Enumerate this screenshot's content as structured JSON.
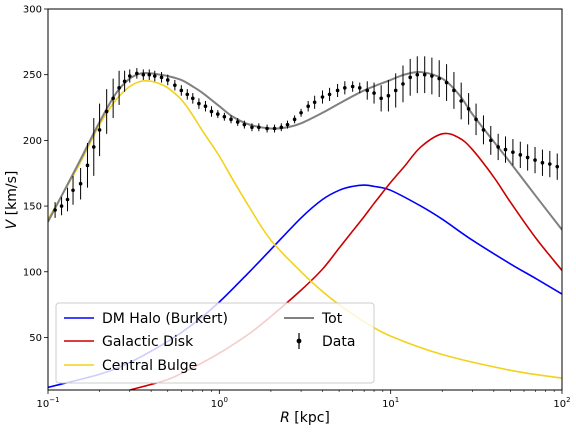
{
  "chart_data": {
    "type": "line",
    "xlabel": "R [kpc]",
    "ylabel": "V [km/s]",
    "xscale": "log",
    "xlim": [
      0.1,
      100
    ],
    "ylim": [
      10,
      300
    ],
    "xticks": [
      {
        "value": 0.1,
        "base": "10",
        "exp": "−1"
      },
      {
        "value": 1,
        "base": "10",
        "exp": "0"
      },
      {
        "value": 10,
        "base": "10",
        "exp": "1"
      },
      {
        "value": 100,
        "base": "10",
        "exp": "2"
      }
    ],
    "yticks": [
      50,
      100,
      150,
      200,
      250,
      300
    ],
    "legend_position": "lower-left",
    "series": [
      {
        "name": "DM Halo (Burkert)",
        "color": "#0000ff",
        "x": [
          0.1,
          0.2,
          0.3,
          0.5,
          0.7,
          1,
          1.5,
          2,
          3,
          4,
          5,
          6,
          7,
          8,
          10,
          15,
          20,
          30,
          50,
          70,
          100
        ],
        "y": [
          12,
          22,
          31,
          47,
          60,
          77,
          100,
          117,
          141,
          155,
          162,
          165,
          166,
          165,
          162,
          150,
          140,
          124,
          106,
          95,
          83
        ]
      },
      {
        "name": "Galactic Disk",
        "color": "#cc0000",
        "x": [
          0.3,
          0.5,
          0.7,
          1,
          1.5,
          2,
          3,
          4,
          5,
          6,
          7,
          8,
          10,
          12,
          15,
          20,
          25,
          30,
          40,
          50,
          70,
          100
        ],
        "y": [
          10,
          18,
          27,
          38,
          53,
          66,
          86,
          102,
          118,
          131,
          142,
          152,
          168,
          180,
          195,
          205,
          202,
          193,
          172,
          153,
          126,
          101
        ]
      },
      {
        "name": "Central Bulge",
        "color": "#f2d21b",
        "x": [
          0.1,
          0.15,
          0.2,
          0.25,
          0.3,
          0.35,
          0.4,
          0.45,
          0.5,
          0.6,
          0.7,
          0.8,
          1,
          1.2,
          1.5,
          2,
          3,
          4,
          5,
          7,
          10,
          20,
          50,
          100
        ],
        "y": [
          140,
          180,
          212,
          231,
          241,
          245,
          245,
          243,
          240,
          231,
          219,
          207,
          188,
          170,
          149,
          124,
          100,
          85,
          75,
          62,
          51,
          37,
          25,
          19
        ]
      },
      {
        "name": "Tot",
        "color": "#808080",
        "x": [
          0.1,
          0.15,
          0.2,
          0.25,
          0.3,
          0.35,
          0.4,
          0.45,
          0.5,
          0.6,
          0.7,
          0.8,
          1,
          1.2,
          1.5,
          2,
          2.5,
          3,
          4,
          5,
          7,
          10,
          12,
          15,
          20,
          25,
          30,
          40,
          50,
          70,
          100
        ],
        "y": [
          138,
          182,
          214,
          236,
          247,
          251,
          251,
          250,
          249,
          246,
          241,
          236,
          226,
          218,
          212,
          209,
          210,
          213,
          221,
          228,
          238,
          246,
          250,
          252,
          247,
          235,
          220,
          199,
          183,
          158,
          132
        ]
      }
    ],
    "errorbar_series": {
      "name": "Data",
      "color": "#000000",
      "x": [
        0.11,
        0.12,
        0.13,
        0.14,
        0.155,
        0.17,
        0.185,
        0.2,
        0.22,
        0.24,
        0.26,
        0.28,
        0.3,
        0.33,
        0.36,
        0.39,
        0.42,
        0.46,
        0.5,
        0.55,
        0.6,
        0.65,
        0.7,
        0.76,
        0.83,
        0.9,
        0.98,
        1.07,
        1.17,
        1.28,
        1.4,
        1.55,
        1.7,
        1.9,
        2.1,
        2.3,
        2.5,
        2.75,
        3.0,
        3.3,
        3.6,
        4.0,
        4.4,
        4.9,
        5.4,
        6.0,
        6.6,
        7.3,
        8.0,
        8.8,
        9.7,
        10.7,
        11.8,
        13.0,
        14.3,
        15.8,
        17.4,
        19.2,
        21.2,
        23.4,
        25.8,
        28.5,
        31.5,
        34.8,
        38.4,
        42.4,
        46.8,
        51.7,
        57.1,
        63.0,
        69.6,
        76.9,
        84.9,
        93.8
      ],
      "y": [
        147,
        150,
        155,
        162,
        167,
        181,
        195,
        208,
        222,
        232,
        240,
        245,
        249,
        251,
        250,
        250,
        249,
        248,
        246,
        242,
        238,
        235,
        232,
        228,
        226,
        222,
        220,
        218,
        216,
        214,
        212,
        210,
        210,
        209,
        209,
        210,
        212,
        216,
        221,
        226,
        229,
        233,
        235,
        238,
        240,
        241,
        240,
        238,
        236,
        232,
        234,
        238,
        243,
        248,
        250,
        250,
        249,
        247,
        244,
        238,
        230,
        224,
        216,
        208,
        200,
        195,
        193,
        191,
        189,
        187,
        185,
        183,
        182,
        180
      ],
      "err": [
        6,
        7,
        9,
        11,
        12,
        17,
        22,
        20,
        17,
        15,
        13,
        8,
        5,
        4,
        4,
        4,
        4,
        4,
        4,
        4,
        4,
        4,
        4,
        4,
        4,
        4,
        3,
        3,
        3,
        3,
        3,
        3,
        3,
        3,
        3,
        3,
        3,
        3,
        3,
        4,
        5,
        5,
        5,
        5,
        5,
        4,
        4,
        7,
        8,
        10,
        12,
        13,
        14,
        14,
        14,
        14,
        14,
        14,
        14,
        14,
        14,
        12,
        12,
        11,
        11,
        10,
        10,
        10,
        10,
        10,
        10,
        10,
        10,
        10
      ]
    }
  }
}
